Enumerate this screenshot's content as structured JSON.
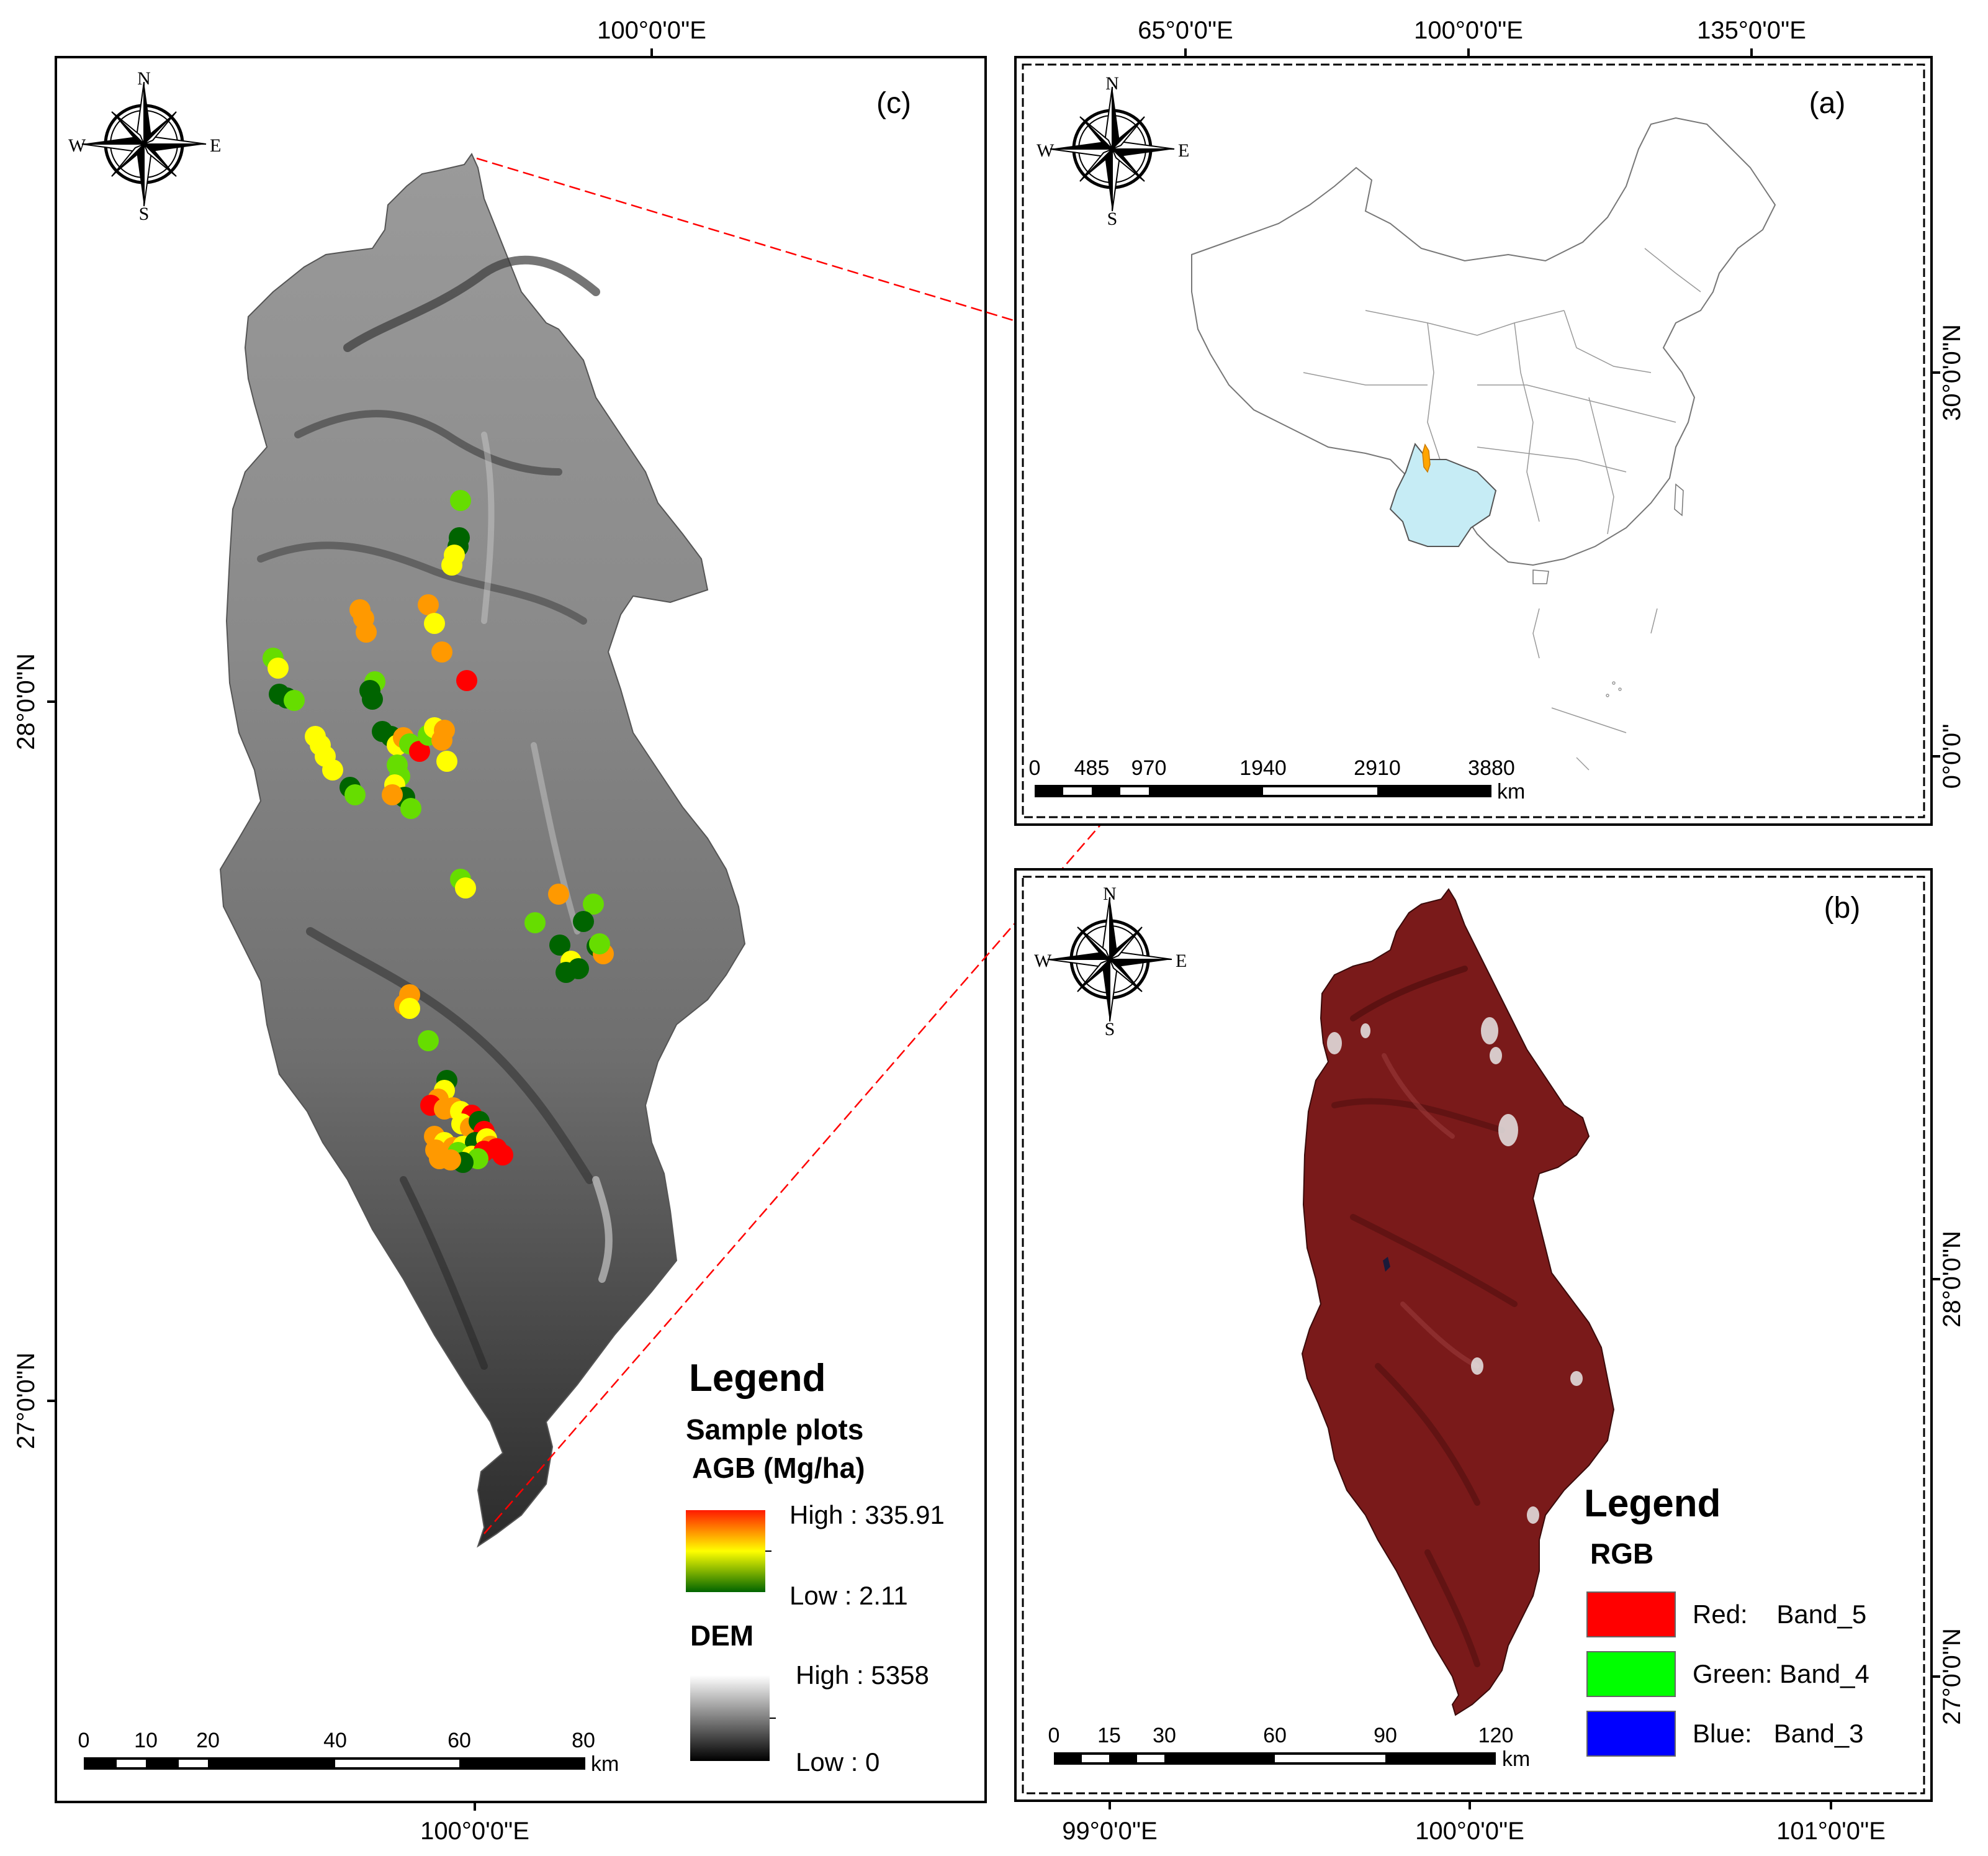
{
  "panels": {
    "c": {
      "letter": "(c)",
      "top_lon": "100°0'0\"E",
      "bottom_lon": "100°0'0\"E",
      "left_lats": [
        "28°0'0\"N",
        "27°0'0\"N"
      ],
      "legend": {
        "title": "Legend",
        "sample_title_1": "Sample plots",
        "sample_title_2": "AGB (Mg/ha)",
        "agb_high": "High : 335.91",
        "agb_low": "Low : 2.11",
        "dem_title": "DEM",
        "dem_high": "High : 5358",
        "dem_low": "Low : 0"
      },
      "scale": {
        "ticks": [
          "0",
          "10",
          "20",
          "40",
          "60",
          "80"
        ],
        "unit": "km"
      }
    },
    "a": {
      "letter": "(a)",
      "top_lons": [
        "65°0'0\"E",
        "100°0'0\"E",
        "135°0'0\"E"
      ],
      "right_lats": [
        "30°0'0\"N",
        "0°0'0\""
      ],
      "scale": {
        "ticks": [
          "0",
          "485",
          "970",
          "1940",
          "2910",
          "3880"
        ],
        "unit": "km"
      }
    },
    "b": {
      "letter": "(b)",
      "bottom_lons": [
        "99°0'0\"E",
        "100°0'0\"E",
        "101°0'0\"E"
      ],
      "right_lats": [
        "28°0'0\"N",
        "27°0'0\"N"
      ],
      "legend": {
        "title": "Legend",
        "rgb_title": "RGB",
        "entries": [
          {
            "label": "Red:    Band_5",
            "color": "#ff0000"
          },
          {
            "label": "Green: Band_4",
            "color": "#00ff00"
          },
          {
            "label": "Blue:   Band_3",
            "color": "#0000ff"
          }
        ]
      },
      "scale": {
        "ticks": [
          "0",
          "15",
          "30",
          "60",
          "90",
          "120"
        ],
        "unit": "km"
      }
    }
  },
  "compass": {
    "n": "N",
    "s": "S",
    "e": "E",
    "w": "W"
  },
  "colors": {
    "agb_high": "#ff1a00",
    "agb_mid": "#ffff00",
    "agb_low": "#006400",
    "dem_high": "#ffffff",
    "dem_low": "#000000",
    "study_area_highlight": "#ffa500",
    "province_fill": "#c6ecf5",
    "connector_line": "#ff0000",
    "false_color": "#7a1a1a"
  },
  "sample_plot_colors": [
    "#ff0000",
    "#ff9900",
    "#ffff00",
    "#66dd00",
    "#006400"
  ]
}
